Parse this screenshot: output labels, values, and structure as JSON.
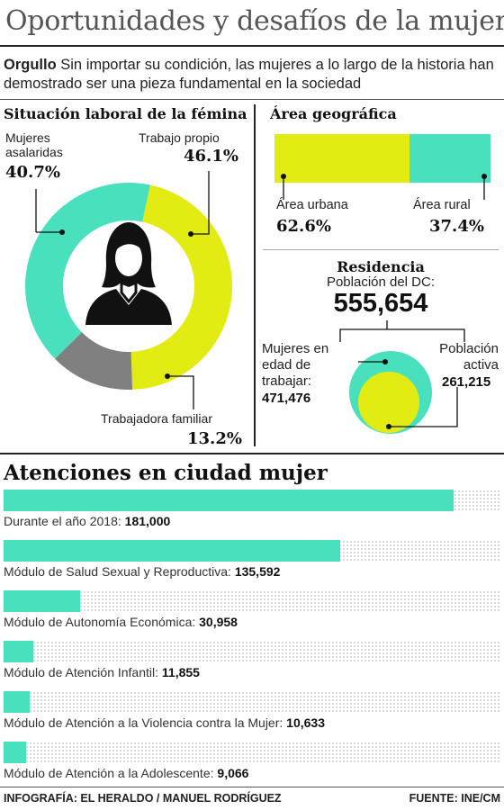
{
  "title": "Oportunidades y desafíos de la mujer",
  "intro": {
    "lead": "Orgullo",
    "text": " Sin importar su condición, las mujeres a lo largo de la historia han demostrado ser una pieza fundamental en la sociedad"
  },
  "colors": {
    "teal": "#49e0bd",
    "yellow": "#e3ec12",
    "gray": "#808080",
    "dark": "#111111"
  },
  "icons": {
    "woman": "woman-silhouette-icon"
  },
  "chart_data": [
    {
      "type": "pie",
      "title": "Situación laboral de la fémina",
      "slices": [
        {
          "label": "Trabajo propio",
          "value": 46.1,
          "display": "46.1%",
          "color": "#e3ec12"
        },
        {
          "label": "Trabajadora familiar",
          "value": 13.2,
          "display": "13.2%",
          "color": "#808080"
        },
        {
          "label": "Mujeres asalaridas",
          "value": 40.7,
          "display": "40.7%",
          "color": "#49e0bd"
        }
      ]
    },
    {
      "type": "bar",
      "title": "Área geográfica",
      "stacked": true,
      "categories": [
        "Área urbana",
        "Área rural"
      ],
      "values": [
        62.6,
        37.4
      ],
      "display": [
        "62.6%",
        "37.4%"
      ],
      "colors": [
        "#e3ec12",
        "#49e0bd"
      ]
    },
    {
      "type": "bubble",
      "title": "Residencia",
      "subtitle": "Población del DC:",
      "total": "555,654",
      "groups": [
        {
          "label_lines": [
            "Mujeres en",
            "edad de",
            "trabajar:"
          ],
          "value": 471476,
          "display": "471,476",
          "color": "#49e0bd"
        },
        {
          "label_lines": [
            "Población",
            "activa"
          ],
          "value": 261215,
          "display": "261,215",
          "color": "#e3ec12"
        }
      ]
    },
    {
      "type": "bar",
      "orientation": "horizontal",
      "title": "Atenciones en ciudad mujer",
      "xlim": [
        0,
        200000
      ],
      "color": "#49e0bd",
      "items": [
        {
          "label": "Durante el año 2018:",
          "value": 181000,
          "display": "181,000"
        },
        {
          "label": "Módulo de Salud Sexual y Reproductiva:",
          "value": 135592,
          "display": "135,592"
        },
        {
          "label": "Módulo de Autonomía Económica:",
          "value": 30958,
          "display": "30,958"
        },
        {
          "label": "Módulo de Atención Infantil:",
          "value": 11855,
          "display": "11,855"
        },
        {
          "label": "Módulo de Atención a la Violencia contra la Mujer:",
          "value": 10633,
          "display": "10,633"
        },
        {
          "label": "Módulo de Atención a la Adolescente:",
          "value": 9066,
          "display": "9,066"
        }
      ]
    }
  ],
  "footer": {
    "credit": "INFOGRAFÍA: EL HERALDO / MANUEL RODRÍGUEZ",
    "source": "FUENTE: INE/CM"
  }
}
